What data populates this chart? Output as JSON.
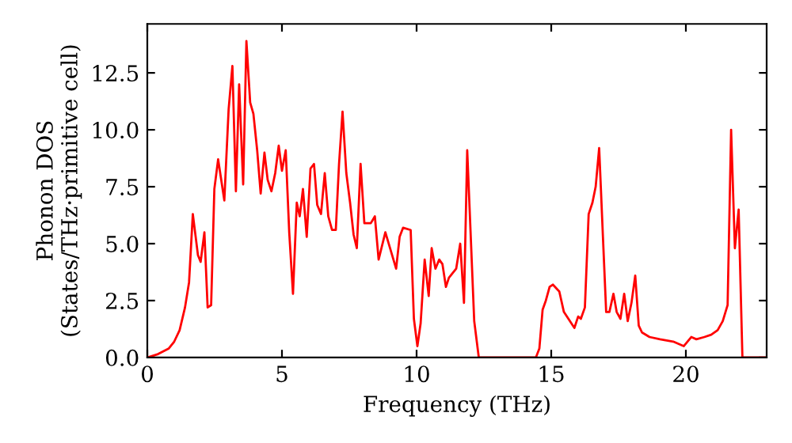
{
  "chart_data": {
    "type": "line",
    "xlabel": "Frequency (THz)",
    "ylabel": "Phonon DOS\n(States/THz·primitive cell)",
    "xlim": [
      0,
      23
    ],
    "ylim": [
      0,
      14.65
    ],
    "xticks": [
      0,
      5,
      10,
      15,
      20
    ],
    "yticks": [
      {
        "value": 0,
        "label": "0.0"
      },
      {
        "value": 2.5,
        "label": "2.5"
      },
      {
        "value": 5,
        "label": "5.0"
      },
      {
        "value": 7.5,
        "label": "7.5"
      },
      {
        "value": 10,
        "label": "10.0"
      },
      {
        "value": 12.5,
        "label": "12.5"
      }
    ],
    "grid": false,
    "legend": false,
    "marker": "none",
    "line_style": "solid",
    "series": [
      {
        "color": "#ff0000",
        "x": [
          0,
          0.4,
          0.8,
          1.0,
          1.2,
          1.4,
          1.55,
          1.69,
          1.88,
          1.98,
          2.12,
          2.24,
          2.37,
          2.49,
          2.63,
          2.86,
          3.02,
          3.16,
          3.29,
          3.41,
          3.56,
          3.68,
          3.82,
          3.94,
          4.08,
          4.21,
          4.35,
          4.47,
          4.61,
          4.75,
          4.88,
          5.0,
          5.14,
          5.27,
          5.41,
          5.55,
          5.66,
          5.78,
          5.92,
          6.06,
          6.19,
          6.31,
          6.45,
          6.59,
          6.72,
          6.86,
          7.0,
          7.12,
          7.25,
          7.39,
          7.53,
          7.66,
          7.78,
          7.92,
          8.06,
          8.3,
          8.45,
          8.59,
          8.84,
          9.24,
          9.37,
          9.5,
          9.78,
          9.9,
          10.03,
          10.15,
          10.3,
          10.45,
          10.56,
          10.7,
          10.84,
          10.96,
          11.09,
          11.2,
          11.47,
          11.62,
          11.76,
          11.88,
          12.14,
          12.31,
          14.43,
          14.56,
          14.68,
          14.8,
          14.94,
          15.06,
          15.3,
          15.47,
          15.86,
          16.0,
          16.1,
          16.25,
          16.39,
          16.53,
          16.65,
          16.78,
          16.92,
          17.04,
          17.16,
          17.31,
          17.43,
          17.57,
          17.71,
          17.84,
          17.98,
          18.12,
          18.25,
          18.37,
          18.65,
          19.04,
          19.53,
          19.92,
          20.2,
          20.39,
          20.69,
          20.94,
          21.18,
          21.37,
          21.55,
          21.68,
          21.82,
          21.96,
          22.1,
          23
        ],
        "values": [
          0,
          0.15,
          0.4,
          0.7,
          1.2,
          2.2,
          3.3,
          6.3,
          4.5,
          4.2,
          5.5,
          2.2,
          2.3,
          7.4,
          8.7,
          6.9,
          10.9,
          12.8,
          7.3,
          12.0,
          7.6,
          13.9,
          11.2,
          10.7,
          9.1,
          7.2,
          9.0,
          7.8,
          7.3,
          8.1,
          9.3,
          8.2,
          9.1,
          5.5,
          2.8,
          6.8,
          6.2,
          7.4,
          5.3,
          8.3,
          8.5,
          6.7,
          6.3,
          8.1,
          6.2,
          5.6,
          5.6,
          8.5,
          10.8,
          8.1,
          6.8,
          5.4,
          4.8,
          8.5,
          5.9,
          5.9,
          6.2,
          4.3,
          5.5,
          3.9,
          5.3,
          5.7,
          5.6,
          1.7,
          0.5,
          1.5,
          4.3,
          2.7,
          4.8,
          3.9,
          4.3,
          4.1,
          3.1,
          3.5,
          3.9,
          5.0,
          2.4,
          9.1,
          1.6,
          0,
          0,
          0.4,
          2.1,
          2.5,
          3.1,
          3.2,
          2.9,
          2.0,
          1.3,
          1.8,
          1.7,
          2.2,
          6.3,
          6.8,
          7.5,
          9.2,
          5.3,
          2.0,
          2.0,
          2.8,
          2.0,
          1.7,
          2.8,
          1.6,
          2.4,
          3.6,
          1.4,
          1.1,
          0.9,
          0.8,
          0.7,
          0.5,
          0.9,
          0.8,
          0.9,
          1.0,
          1.2,
          1.6,
          2.3,
          10.0,
          4.8,
          6.5,
          0,
          0
        ]
      }
    ]
  }
}
